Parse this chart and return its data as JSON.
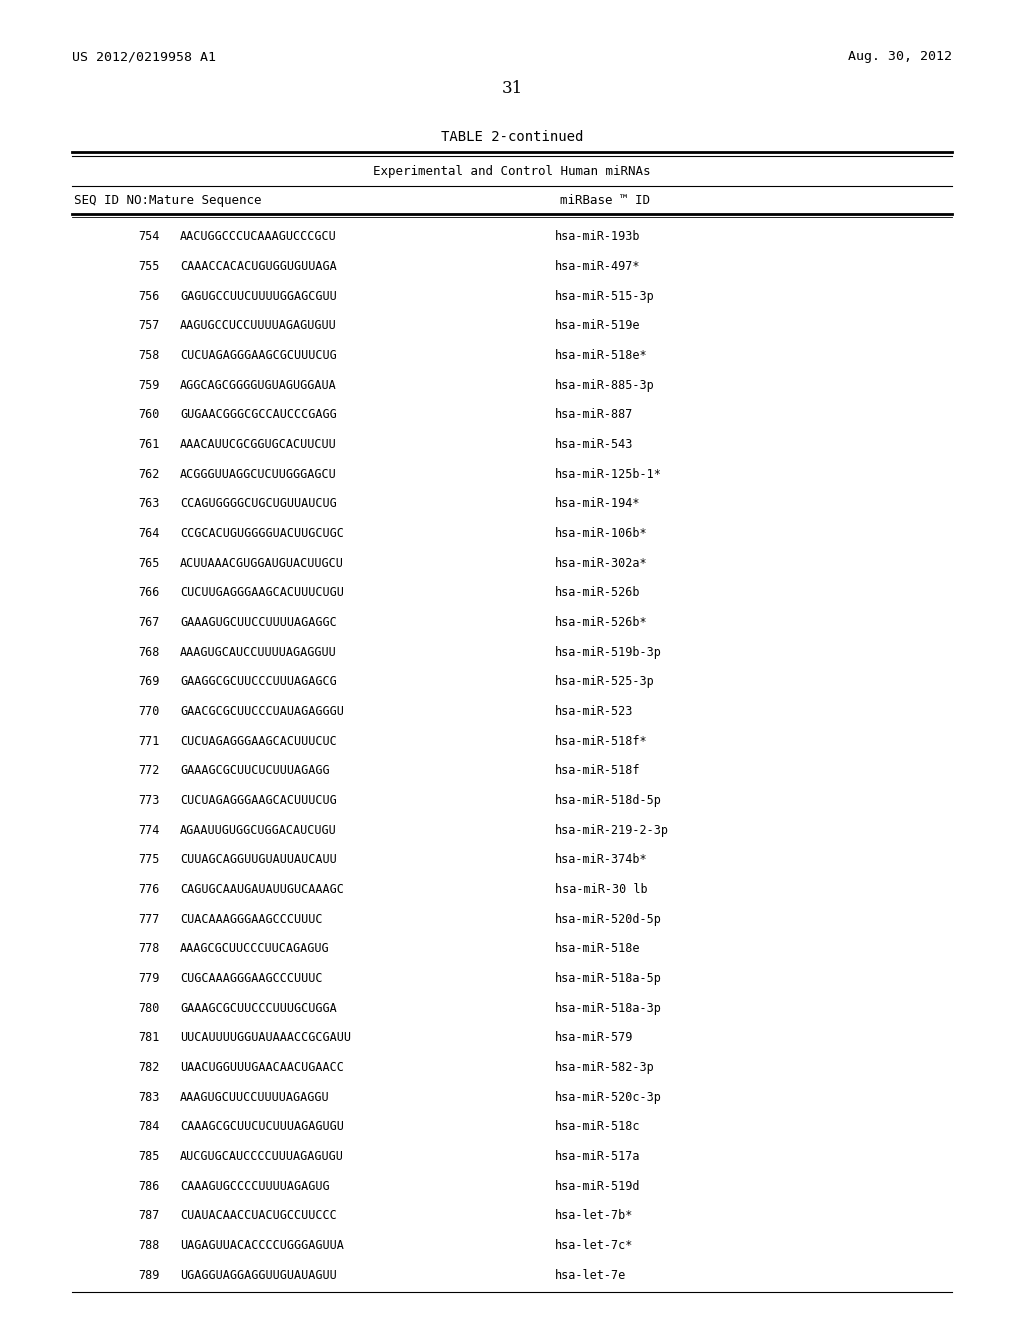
{
  "header_left": "US 2012/0219958 A1",
  "header_right": "Aug. 30, 2012",
  "page_number": "31",
  "table_title": "TABLE 2-continued",
  "table_subtitle": "Experimental and Control Human miRNAs",
  "col1_header": "SEQ ID NO:",
  "col2_header": "Mature Sequence",
  "col3_header": "miRBase ™ ID",
  "rows": [
    [
      "754",
      "AACUGGCCCUCAAAGUCCCGCU",
      "hsa-miR-193b"
    ],
    [
      "755",
      "CAAACCACACUGUGGUGUUAGA",
      "hsa-miR-497*"
    ],
    [
      "756",
      "GAGUGCCUUCUUUUGGAGCGUU",
      "hsa-miR-515-3p"
    ],
    [
      "757",
      "AAGUGCCUCCUUUUAGAGUGUU",
      "hsa-miR-519e"
    ],
    [
      "758",
      "CUCUAGAGGGAAGCGCUUUCUG",
      "hsa-miR-518e*"
    ],
    [
      "759",
      "AGGCAGCGGGGUGUAGUGGAUA",
      "hsa-miR-885-3p"
    ],
    [
      "760",
      "GUGAACGGGCGCCAUCCCGAGG",
      "hsa-miR-887"
    ],
    [
      "761",
      "AAACAUUCGCGGUGCACUUCUU",
      "hsa-miR-543"
    ],
    [
      "762",
      "ACGGGUUAGGCUCUUGGGAGCU",
      "hsa-miR-125b-1*"
    ],
    [
      "763",
      "CCAGUGGGGCUGCUGUUAUCUG",
      "hsa-miR-194*"
    ],
    [
      "764",
      "CCGCACUGUGGGGUACUUGCUGC",
      "hsa-miR-106b*"
    ],
    [
      "765",
      "ACUUAAACGUGGAUGUACUUGCU",
      "hsa-miR-302a*"
    ],
    [
      "766",
      "CUCUUGAGGGAAGCACUUUCUGU",
      "hsa-miR-526b"
    ],
    [
      "767",
      "GAAAGUGCUUCCUUUUAGAGGC",
      "hsa-miR-526b*"
    ],
    [
      "768",
      "AAAGUGCAUCCUUUUAGAGGUU",
      "hsa-miR-519b-3p"
    ],
    [
      "769",
      "GAAGGCGCUUCCCUUUAGAGCG",
      "hsa-miR-525-3p"
    ],
    [
      "770",
      "GAACGCGCUUCCCUAUAGAGGGU",
      "hsa-miR-523"
    ],
    [
      "771",
      "CUCUAGAGGGAAGCACUUUCUC",
      "hsa-miR-518f*"
    ],
    [
      "772",
      "GAAAGCGCUUCUCUUUAGAGG",
      "hsa-miR-518f"
    ],
    [
      "773",
      "CUCUAGAGGGAAGCACUUUCUG",
      "hsa-miR-518d-5p"
    ],
    [
      "774",
      "AGAAUUGUGGCUGGACAUCUGU",
      "hsa-miR-219-2-3p"
    ],
    [
      "775",
      "CUUAGCAGGUUGUAUUAUCAUU",
      "hsa-miR-374b*"
    ],
    [
      "776",
      "CAGUGCAAUGAUAUUGUCAAAGC",
      "hsa-miR-30 lb"
    ],
    [
      "777",
      "CUACAAAGGGAAGCCCUUUC",
      "hsa-miR-520d-5p"
    ],
    [
      "778",
      "AAAGCGCUUCCCUUCAGAGUG",
      "hsa-miR-518e"
    ],
    [
      "779",
      "CUGCAAAGGGAAGCCCUUUC",
      "hsa-miR-518a-5p"
    ],
    [
      "780",
      "GAAAGCGCUUCCCUUUGCUGGA",
      "hsa-miR-518a-3p"
    ],
    [
      "781",
      "UUCAUUUUGGUAUAAACCGCGAUU",
      "hsa-miR-579"
    ],
    [
      "782",
      "UAACUGGUUUGAACAACUGAACC",
      "hsa-miR-582-3p"
    ],
    [
      "783",
      "AAAGUGCUUCCUUUUAGAGGU",
      "hsa-miR-520c-3p"
    ],
    [
      "784",
      "CAAAGCGCUUCUCUUUAGAGUGU",
      "hsa-miR-518c"
    ],
    [
      "785",
      "AUCGUGCAUCCCCUUUAGAGUGU",
      "hsa-miR-517a"
    ],
    [
      "786",
      "CAAAGUGCCCCUUUUAGAGUG",
      "hsa-miR-519d"
    ],
    [
      "787",
      "CUAUACAACCUACUGCCUUCCC",
      "hsa-let-7b*"
    ],
    [
      "788",
      "UAGAGUUACACCCCUGGGAGUUA",
      "hsa-let-7c*"
    ],
    [
      "789",
      "UGAGGUAGGAGGUUGUAUAGUU",
      "hsa-let-7e"
    ]
  ],
  "bg_color": "#ffffff",
  "text_color": "#000000",
  "header_font_size": 9.5,
  "page_num_font_size": 12,
  "table_title_font_size": 10,
  "subtitle_font_size": 9,
  "col_header_font_size": 9,
  "row_font_size": 8.5
}
